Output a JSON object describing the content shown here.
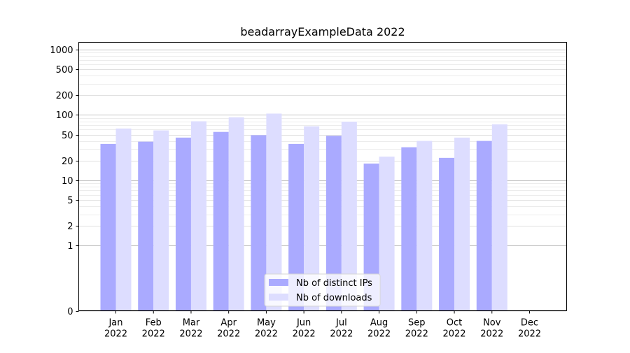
{
  "chart_data": {
    "type": "bar",
    "title": "beadarrayExampleData 2022",
    "xlabel": "",
    "ylabel": "",
    "yscale": "symlog",
    "ylim": [
      0,
      1300
    ],
    "y_ticks": [
      0,
      1,
      2,
      5,
      10,
      20,
      50,
      100,
      200,
      500,
      1000
    ],
    "y_tick_labels": [
      "0",
      "1",
      "2",
      "5",
      "10",
      "20",
      "50",
      "100",
      "200",
      "500",
      "1000"
    ],
    "categories": [
      "Jan\n2022",
      "Feb\n2022",
      "Mar\n2022",
      "Apr\n2022",
      "May\n2022",
      "Jun\n2022",
      "Jul\n2022",
      "Aug\n2022",
      "Sep\n2022",
      "Oct\n2022",
      "Nov\n2022",
      "Dec\n2022"
    ],
    "series": [
      {
        "name": "Nb of distinct IPs",
        "color": "#aaaaff",
        "values": [
          36,
          39,
          45,
          55,
          49,
          36,
          48,
          18,
          32,
          22,
          40,
          0
        ]
      },
      {
        "name": "Nb of downloads",
        "color": "#ddddff",
        "values": [
          62,
          58,
          80,
          92,
          105,
          67,
          79,
          23,
          40,
          45,
          72,
          0
        ]
      }
    ],
    "grid": true,
    "legend_position": "bottom-center"
  }
}
